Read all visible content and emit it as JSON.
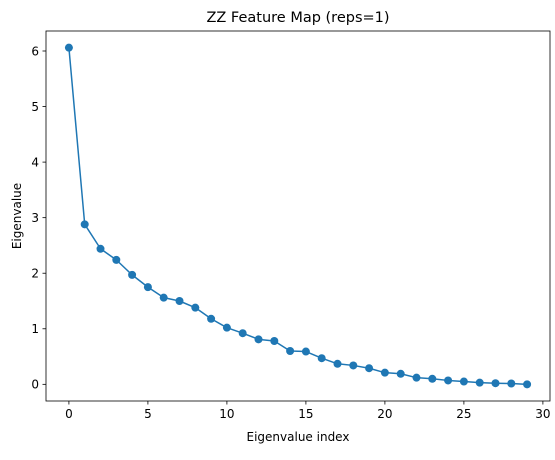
{
  "chart_data": {
    "type": "line",
    "title": "ZZ Feature Map (reps=1)",
    "xlabel": "Eigenvalue index",
    "ylabel": "Eigenvalue",
    "xlim": [
      -1.45,
      30.45
    ],
    "ylim": [
      -0.3,
      6.36
    ],
    "xticks": [
      0,
      5,
      10,
      15,
      20,
      25,
      30
    ],
    "yticks": [
      0,
      1,
      2,
      3,
      4,
      5,
      6
    ],
    "grid": false,
    "legend": "none",
    "markers": "circle",
    "series": [
      {
        "color": "#1f77b4",
        "x": [
          0,
          1,
          2,
          3,
          4,
          5,
          6,
          7,
          8,
          9,
          10,
          11,
          12,
          13,
          14,
          15,
          16,
          17,
          18,
          19,
          20,
          21,
          22,
          23,
          24,
          25,
          26,
          27,
          28,
          29
        ],
        "values": [
          6.06,
          2.88,
          2.44,
          2.24,
          1.97,
          1.75,
          1.56,
          1.5,
          1.38,
          1.18,
          1.02,
          0.92,
          0.81,
          0.78,
          0.6,
          0.59,
          0.47,
          0.37,
          0.34,
          0.29,
          0.21,
          0.19,
          0.12,
          0.1,
          0.07,
          0.05,
          0.03,
          0.02,
          0.015,
          0.0
        ]
      }
    ]
  }
}
